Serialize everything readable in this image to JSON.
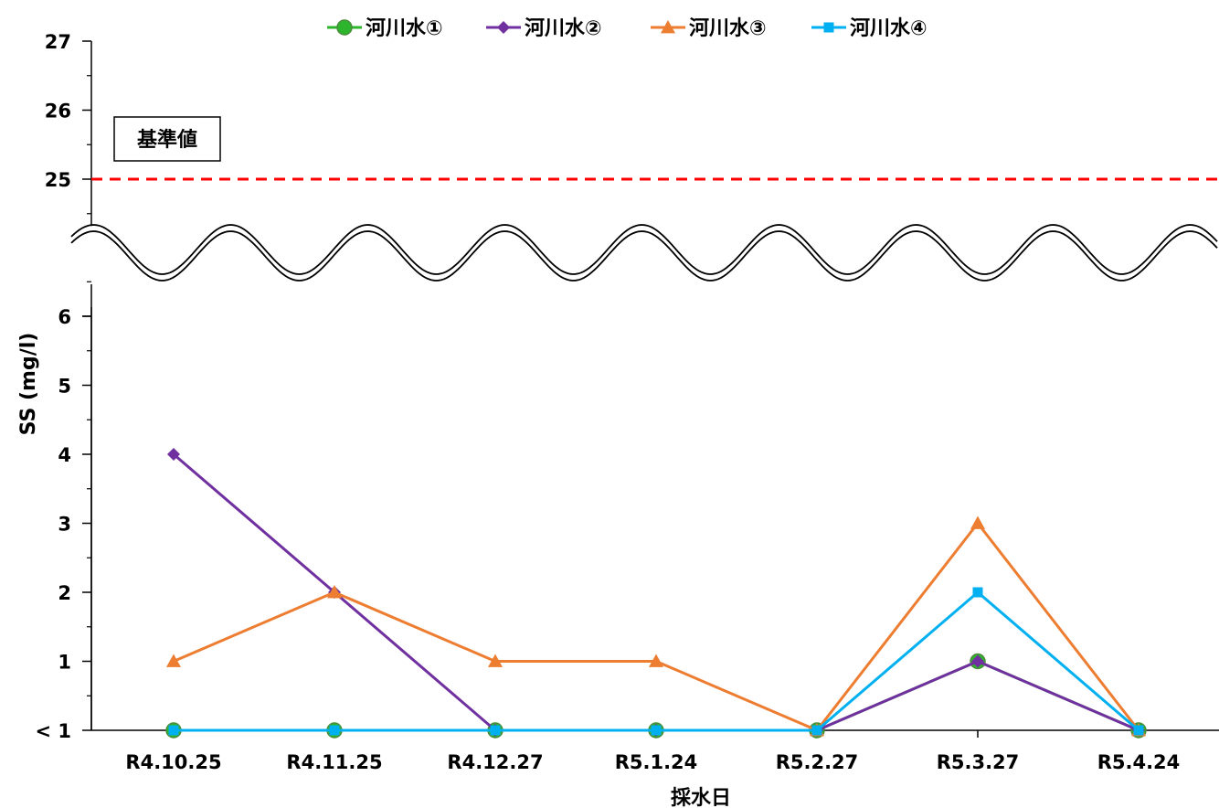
{
  "chart_data": {
    "type": "line",
    "categories": [
      "R4.10.25",
      "R4.11.25",
      "R4.12.27",
      "R5.1.24",
      "R5.2.27",
      "R5.3.27",
      "R5.4.24"
    ],
    "series": [
      {
        "name": "河川水①",
        "color": "#2db52d",
        "marker": "circle",
        "values": [
          0,
          0,
          0,
          0,
          0,
          1,
          0
        ]
      },
      {
        "name": "河川水②",
        "color": "#7030a0",
        "marker": "diamond",
        "values": [
          4,
          2,
          0,
          0,
          0,
          1,
          0
        ]
      },
      {
        "name": "河川水③",
        "color": "#ed7d31",
        "marker": "triangle",
        "values": [
          1,
          2,
          1,
          1,
          0,
          3,
          0
        ]
      },
      {
        "name": "河川水④",
        "color": "#00b0f0",
        "marker": "square",
        "values": [
          0,
          0,
          0,
          0,
          0,
          2,
          0
        ]
      }
    ],
    "ylabel": "SS (mg/l)",
    "xlabel": "採水日",
    "y_tick_labels": [
      "< 1",
      "1",
      "2",
      "3",
      "4",
      "5",
      "6",
      "25",
      "26",
      "27"
    ],
    "y_axis_break": {
      "lower_range": [
        0,
        6
      ],
      "upper_range": [
        25,
        27
      ]
    },
    "reference_line": {
      "label": "基準値",
      "value": 25,
      "color": "#ff0000",
      "style": "dashed"
    },
    "legend_position": "top",
    "note": "Values below detection limit plotted at the '< 1' baseline."
  }
}
